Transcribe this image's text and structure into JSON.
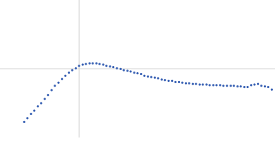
{
  "chart_data": {
    "type": "scatter",
    "x": [
      0.53,
      0.6,
      0.68,
      0.75,
      0.83,
      0.9,
      0.98,
      1.05,
      1.13,
      1.2,
      1.28,
      1.36,
      1.43,
      1.51,
      1.58,
      1.66,
      1.73,
      1.81,
      1.88,
      1.96,
      2.03,
      2.11,
      2.18,
      2.26,
      2.33,
      2.41,
      2.48,
      2.56,
      2.64,
      2.71,
      2.79,
      2.86,
      2.94,
      3.01,
      3.09,
      3.16,
      3.24,
      3.31,
      3.39,
      3.46,
      3.54,
      3.61,
      3.69,
      3.77,
      3.84,
      3.92,
      3.99,
      4.07,
      4.14,
      4.22,
      4.29,
      4.37,
      4.44,
      4.52,
      4.59,
      4.67,
      4.74,
      4.82,
      4.89,
      4.97,
      5.05,
      5.12,
      5.2,
      5.27,
      5.35,
      5.42,
      5.5,
      5.57,
      5.65,
      5.72,
      5.8,
      5.87,
      5.95
    ],
    "values": [
      0.25,
      0.31,
      0.38,
      0.43,
      0.5,
      0.55,
      0.62,
      0.68,
      0.76,
      0.83,
      0.88,
      0.94,
      0.99,
      1.04,
      1.08,
      1.11,
      1.15,
      1.17,
      1.18,
      1.19,
      1.19,
      1.19,
      1.18,
      1.17,
      1.15,
      1.14,
      1.13,
      1.11,
      1.1,
      1.08,
      1.07,
      1.06,
      1.04,
      1.03,
      1.02,
      0.99,
      0.98,
      0.97,
      0.96,
      0.95,
      0.93,
      0.92,
      0.91,
      0.91,
      0.89,
      0.89,
      0.88,
      0.87,
      0.87,
      0.86,
      0.86,
      0.85,
      0.85,
      0.85,
      0.84,
      0.84,
      0.84,
      0.84,
      0.83,
      0.83,
      0.83,
      0.83,
      0.82,
      0.82,
      0.81,
      0.81,
      0.84,
      0.85,
      0.86,
      0.83,
      0.82,
      0.81,
      0.77
    ],
    "color": "#3a62b4",
    "xlim": [
      0,
      6.02
    ],
    "ylim": [
      0,
      2.207
    ],
    "reference_lines": {
      "x": 1.732,
      "y": 1.104,
      "color": "#d0d0d0"
    }
  }
}
